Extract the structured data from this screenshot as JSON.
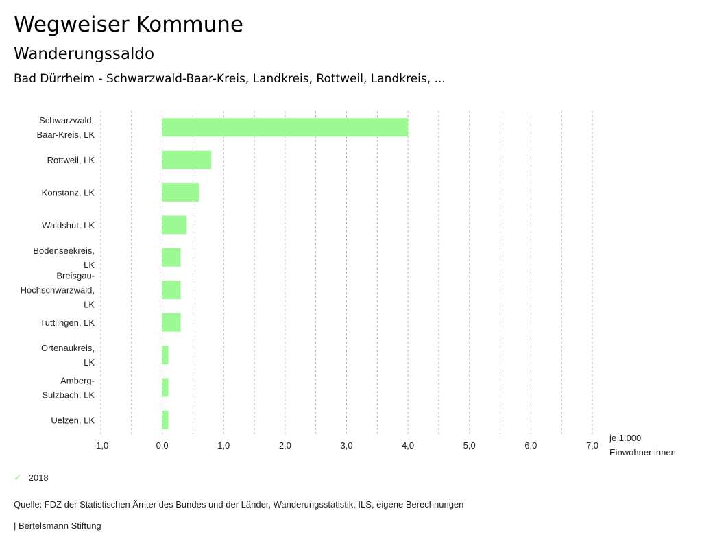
{
  "header": {
    "title": "Wegweiser Kommune",
    "subtitle": "Wanderungssaldo",
    "region": "Bad Dürrheim - Schwarzwald-Baar-Kreis, Landkreis, Rottweil, Landkreis, ..."
  },
  "legend": {
    "items": [
      {
        "label": "2018",
        "color": "#9cf994",
        "icon": "check-icon"
      }
    ]
  },
  "footer": {
    "source": "Quelle: FDZ der Statistischen Ämter des Bundes und der Länder, Wanderungsstatistik, ILS, eigene Berechnungen",
    "credit": "| Bertelsmann Stiftung"
  },
  "chart_data": {
    "type": "bar",
    "orientation": "horizontal",
    "title": "Wanderungssaldo",
    "categories": [
      [
        "Schwarzwald-",
        "Baar-Kreis, LK"
      ],
      [
        "Rottweil, LK"
      ],
      [
        "Konstanz, LK"
      ],
      [
        "Waldshut, LK"
      ],
      [
        "Bodenseekreis,",
        "LK"
      ],
      [
        "Breisgau-",
        "Hochschwarzwald,",
        "LK"
      ],
      [
        "Tuttlingen, LK"
      ],
      [
        "Ortenaukreis,",
        "LK"
      ],
      [
        "Amberg-",
        "Sulzbach, LK"
      ],
      [
        "Uelzen, LK"
      ]
    ],
    "series": [
      {
        "name": "2018",
        "color": "#9cf994",
        "values": [
          4.0,
          0.8,
          0.6,
          0.4,
          0.3,
          0.3,
          0.3,
          0.1,
          0.1,
          0.1
        ]
      }
    ],
    "xlim": [
      -1.0,
      7.0
    ],
    "xticks": [
      -1.0,
      0.0,
      1.0,
      2.0,
      3.0,
      4.0,
      5.0,
      6.0,
      7.0
    ],
    "xtick_labels": [
      "-1,0",
      "0,0",
      "1,0",
      "2,0",
      "3,0",
      "4,0",
      "5,0",
      "6,0",
      "7,0"
    ],
    "minor_gridlines": [
      -0.5,
      0.5,
      1.5,
      2.5,
      3.5,
      4.5,
      5.5,
      6.5
    ],
    "xlabel": [
      "je 1.000",
      "Einwohner:innen"
    ],
    "ylabel": "",
    "grid": true,
    "legend_position": "bottom-left"
  }
}
